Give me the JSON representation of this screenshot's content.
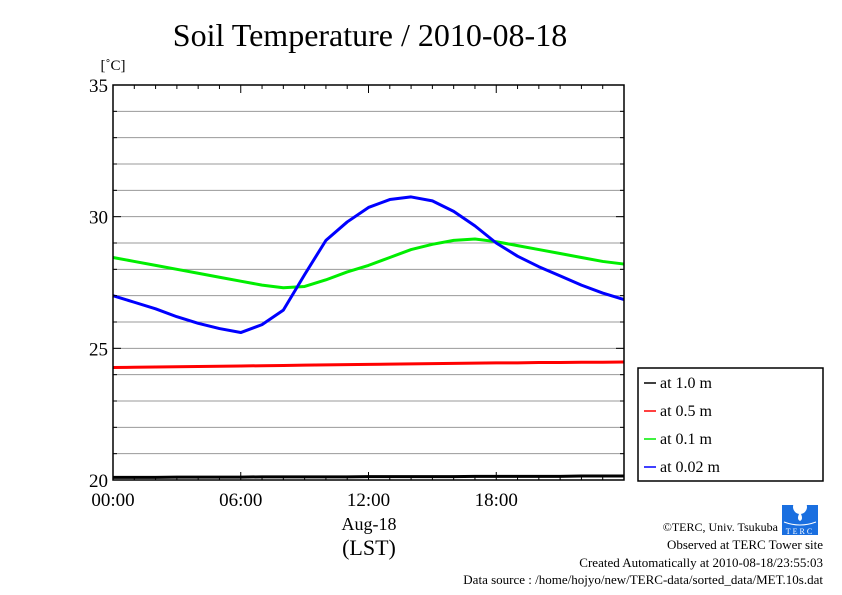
{
  "chart_data": {
    "type": "line",
    "title": "Soil Temperature / 2010-08-18",
    "ylabel": "[˚C]",
    "xlabel": "Aug-18",
    "xlabel2": "(LST)",
    "ylim": [
      20,
      35
    ],
    "xlim": [
      0,
      24
    ],
    "yticks": [
      {
        "v": 20,
        "label": "20"
      },
      {
        "v": 25,
        "label": "25"
      },
      {
        "v": 30,
        "label": "30"
      },
      {
        "v": 35,
        "label": "35"
      }
    ],
    "xticks": [
      {
        "v": 0,
        "label": "00:00"
      },
      {
        "v": 6,
        "label": "06:00"
      },
      {
        "v": 12,
        "label": "12:00"
      },
      {
        "v": 18,
        "label": "18:00"
      }
    ],
    "grid": true,
    "legend_position": "bottom-right-outside",
    "x": [
      0,
      1,
      2,
      3,
      4,
      5,
      6,
      7,
      8,
      9,
      10,
      11,
      12,
      13,
      14,
      15,
      16,
      17,
      18,
      19,
      20,
      21,
      22,
      23,
      24
    ],
    "series": [
      {
        "name": "at 1.0 m",
        "color": "#000000",
        "values": [
          20.1,
          20.1,
          20.1,
          20.11,
          20.11,
          20.11,
          20.11,
          20.12,
          20.12,
          20.12,
          20.12,
          20.12,
          20.13,
          20.13,
          20.13,
          20.13,
          20.13,
          20.14,
          20.14,
          20.14,
          20.14,
          20.14,
          20.15,
          20.15,
          20.15
        ]
      },
      {
        "name": "at 0.5 m",
        "color": "#ff0000",
        "values": [
          24.27,
          24.28,
          24.29,
          24.3,
          24.31,
          24.32,
          24.33,
          24.34,
          24.35,
          24.36,
          24.37,
          24.38,
          24.39,
          24.4,
          24.41,
          24.42,
          24.43,
          24.44,
          24.45,
          24.45,
          24.46,
          24.46,
          24.47,
          24.47,
          24.48
        ]
      },
      {
        "name": "at 0.1 m",
        "color": "#00ee00",
        "values": [
          28.45,
          28.3,
          28.15,
          28.0,
          27.85,
          27.7,
          27.55,
          27.4,
          27.3,
          27.35,
          27.6,
          27.9,
          28.15,
          28.45,
          28.75,
          28.95,
          29.1,
          29.15,
          29.05,
          28.9,
          28.75,
          28.6,
          28.45,
          28.3,
          28.2
        ]
      },
      {
        "name": "at 0.02 m",
        "color": "#0000ff",
        "values": [
          27.0,
          26.75,
          26.5,
          26.2,
          25.95,
          25.75,
          25.6,
          25.9,
          26.45,
          27.8,
          29.1,
          29.8,
          30.35,
          30.65,
          30.75,
          30.6,
          30.2,
          29.65,
          29.0,
          28.5,
          28.1,
          27.75,
          27.4,
          27.1,
          26.85
        ]
      }
    ]
  },
  "credits": {
    "copyright": "©TERC, Univ. Tsukuba",
    "observed": "Observed at TERC Tower site",
    "created": "Created Automatically at 2010-08-18/23:55:03",
    "source": "Data source : /home/hojyo/new/TERC-data/sorted_data/MET.10s.dat",
    "logo_text": "TERC"
  }
}
